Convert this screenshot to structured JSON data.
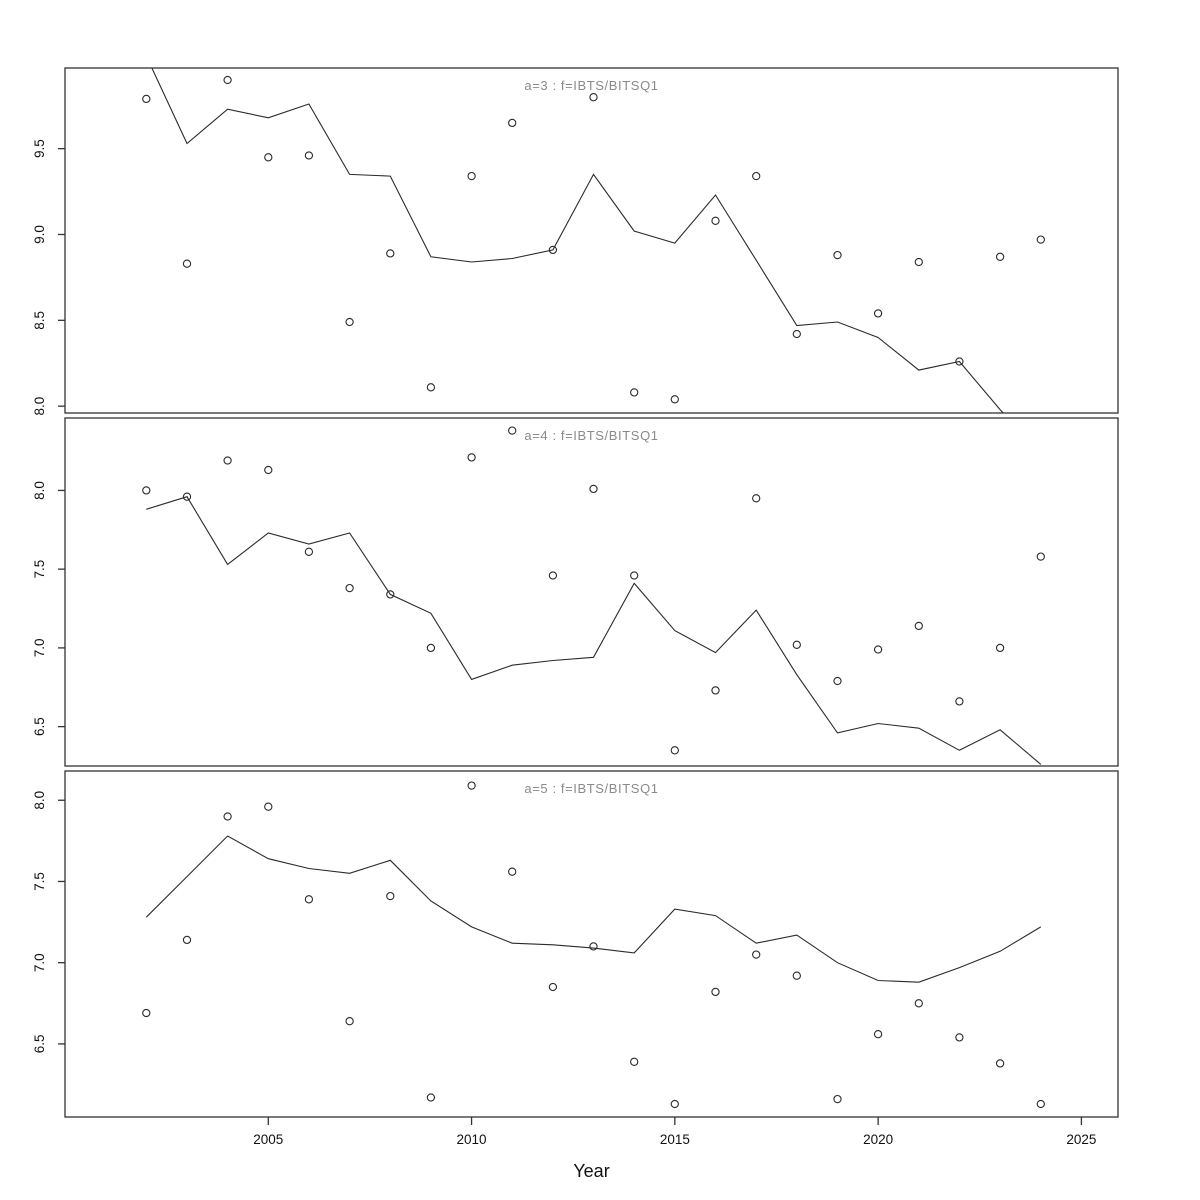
{
  "figure": {
    "xlabel": "Year",
    "background_color": "#ffffff",
    "line_color": "#2a2a2a",
    "point_stroke_color": "#2a2a2a",
    "title_color": "#8a8a8a",
    "axis_color": "#333333"
  },
  "chart_data": [
    {
      "type": "line",
      "title": "a=3 : f=IBTS/BITSQ1",
      "xlabel": "Year",
      "xlim": [
        2000.0,
        2025.9
      ],
      "ylim": [
        7.96,
        9.97
      ],
      "x_ticks": [
        2005,
        2010,
        2015,
        2020,
        2025
      ],
      "y_ticks": [
        8.0,
        8.5,
        9.0,
        9.5
      ],
      "x": [
        2002,
        2003,
        2004,
        2005,
        2006,
        2007,
        2008,
        2009,
        2010,
        2011,
        2012,
        2013,
        2014,
        2015,
        2016,
        2017,
        2018,
        2019,
        2020,
        2021,
        2022,
        2023,
        2024
      ],
      "series": [
        {
          "name": "observed",
          "style": "points",
          "values": [
            9.79,
            8.83,
            9.9,
            9.45,
            9.46,
            8.49,
            8.89,
            8.11,
            9.34,
            9.65,
            8.91,
            9.8,
            8.08,
            8.04,
            9.08,
            9.34,
            8.42,
            8.88,
            8.54,
            8.84,
            8.26,
            8.87,
            8.97
          ]
        },
        {
          "name": "fitted",
          "style": "line",
          "values": [
            10.04,
            9.53,
            9.73,
            9.68,
            9.76,
            9.35,
            9.34,
            8.87,
            8.84,
            8.86,
            8.91,
            9.35,
            9.02,
            8.95,
            9.23,
            8.85,
            8.47,
            8.49,
            8.4,
            8.21,
            8.26,
            7.98,
            7.72
          ]
        }
      ]
    },
    {
      "type": "line",
      "title": "a=4 : f=IBTS/BITSQ1",
      "xlabel": "Year",
      "xlim": [
        2000.0,
        2025.9
      ],
      "ylim": [
        6.25,
        8.46
      ],
      "x_ticks": [
        2005,
        2010,
        2015,
        2020,
        2025
      ],
      "y_ticks": [
        6.5,
        7.0,
        7.5,
        8.0
      ],
      "x": [
        2002,
        2003,
        2004,
        2005,
        2006,
        2007,
        2008,
        2009,
        2010,
        2011,
        2012,
        2013,
        2014,
        2015,
        2016,
        2017,
        2018,
        2019,
        2020,
        2021,
        2022,
        2023,
        2024
      ],
      "series": [
        {
          "name": "observed",
          "style": "points",
          "values": [
            8.0,
            7.96,
            8.19,
            8.13,
            7.61,
            7.38,
            7.34,
            7.0,
            8.21,
            8.38,
            7.46,
            8.01,
            7.46,
            6.35,
            6.73,
            7.95,
            7.02,
            6.79,
            6.99,
            7.14,
            6.66,
            7.0,
            7.58
          ]
        },
        {
          "name": "fitted",
          "style": "line",
          "values": [
            7.88,
            7.96,
            7.53,
            7.73,
            7.66,
            7.73,
            7.34,
            7.22,
            6.8,
            6.89,
            6.92,
            6.94,
            7.41,
            7.11,
            6.97,
            7.24,
            6.83,
            6.46,
            6.52,
            6.49,
            6.35,
            6.48,
            6.26
          ]
        }
      ]
    },
    {
      "type": "line",
      "title": "a=5 : f=IBTS/BITSQ1",
      "xlabel": "Year",
      "xlim": [
        2000.0,
        2025.9
      ],
      "ylim": [
        6.05,
        8.18
      ],
      "x_ticks": [
        2005,
        2010,
        2015,
        2020,
        2025
      ],
      "y_ticks": [
        6.5,
        7.0,
        7.5,
        8.0
      ],
      "x": [
        2002,
        2003,
        2004,
        2005,
        2006,
        2007,
        2008,
        2009,
        2010,
        2011,
        2012,
        2013,
        2014,
        2015,
        2016,
        2017,
        2018,
        2019,
        2020,
        2021,
        2022,
        2023,
        2024
      ],
      "series": [
        {
          "name": "observed",
          "style": "points",
          "values": [
            6.69,
            7.14,
            7.9,
            7.96,
            7.39,
            6.64,
            7.41,
            6.17,
            8.09,
            7.56,
            6.85,
            7.1,
            6.39,
            6.13,
            6.82,
            7.05,
            6.92,
            6.16,
            6.56,
            6.75,
            6.54,
            6.38,
            6.13
          ]
        },
        {
          "name": "fitted",
          "style": "line",
          "values": [
            7.28,
            7.53,
            7.78,
            7.64,
            7.58,
            7.55,
            7.63,
            7.38,
            7.22,
            7.12,
            7.11,
            7.09,
            7.06,
            7.33,
            7.29,
            7.12,
            7.17,
            7.0,
            6.89,
            6.88,
            6.97,
            7.07,
            7.22
          ]
        }
      ]
    }
  ]
}
